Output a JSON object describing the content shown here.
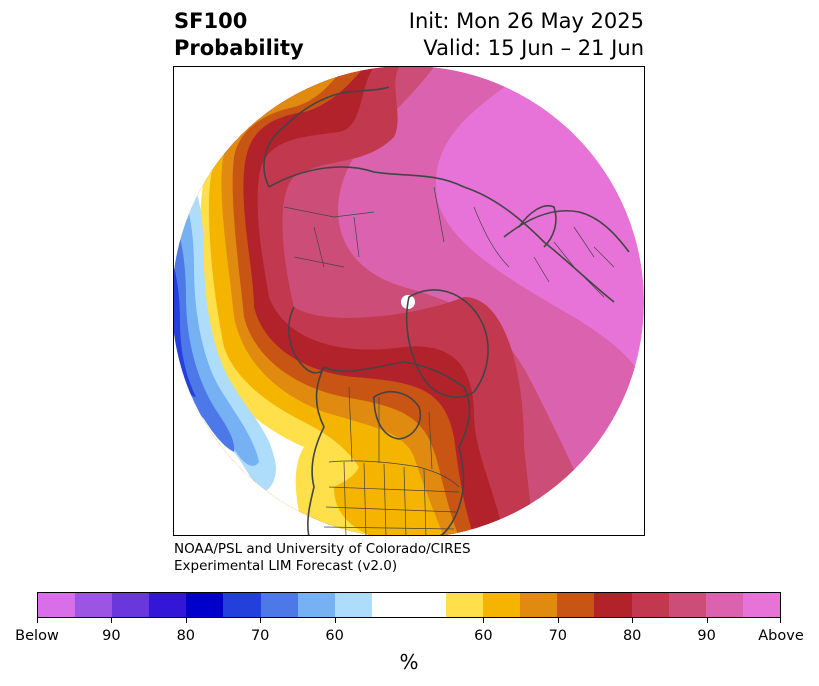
{
  "title": {
    "left_line1": "SF100",
    "left_line2": "Probability",
    "right_line1": "Init: Mon 26 May 2025",
    "right_line2": "Valid: 15 Jun – 21 Jun"
  },
  "credit": {
    "line1": "NOAA/PSL and University of Colorado/CIRES",
    "line2": "Experimental LIM Forecast (v2.0)"
  },
  "colorbar": {
    "unit": "%",
    "colors": [
      "#d86fe8",
      "#9b55e2",
      "#6a37dc",
      "#3416d8",
      "#0000cc",
      "#2340dc",
      "#4d78e8",
      "#76b1f3",
      "#aedcfb",
      "#ffffff",
      "#ffffff",
      "#ffe04a",
      "#f5b400",
      "#e08a10",
      "#c85514",
      "#b2222a",
      "#c2384e",
      "#cc4e78",
      "#db62ae",
      "#e873d8"
    ],
    "ticks": [
      "Below",
      "90",
      "80",
      "70",
      "60",
      "60",
      "70",
      "80",
      "90",
      "Above"
    ]
  },
  "map": {
    "projection": "north-polar-stereographic",
    "region": "Northern Hemisphere",
    "palette": {
      "above_max": "#e873d8",
      "above_90": "#db62ae",
      "above_80": "#cc4e78",
      "above_75": "#c2384e",
      "above_70": "#b2222a",
      "above_65": "#c85514",
      "above_60": "#e08a10",
      "above_55": "#f5b400",
      "above_50": "#ffe04a",
      "below_50": "#aedcfb",
      "below_60": "#76b1f3",
      "below_70": "#4d78e8",
      "below_80": "#2340dc",
      "coast": "#444444",
      "border": "#444444"
    }
  }
}
